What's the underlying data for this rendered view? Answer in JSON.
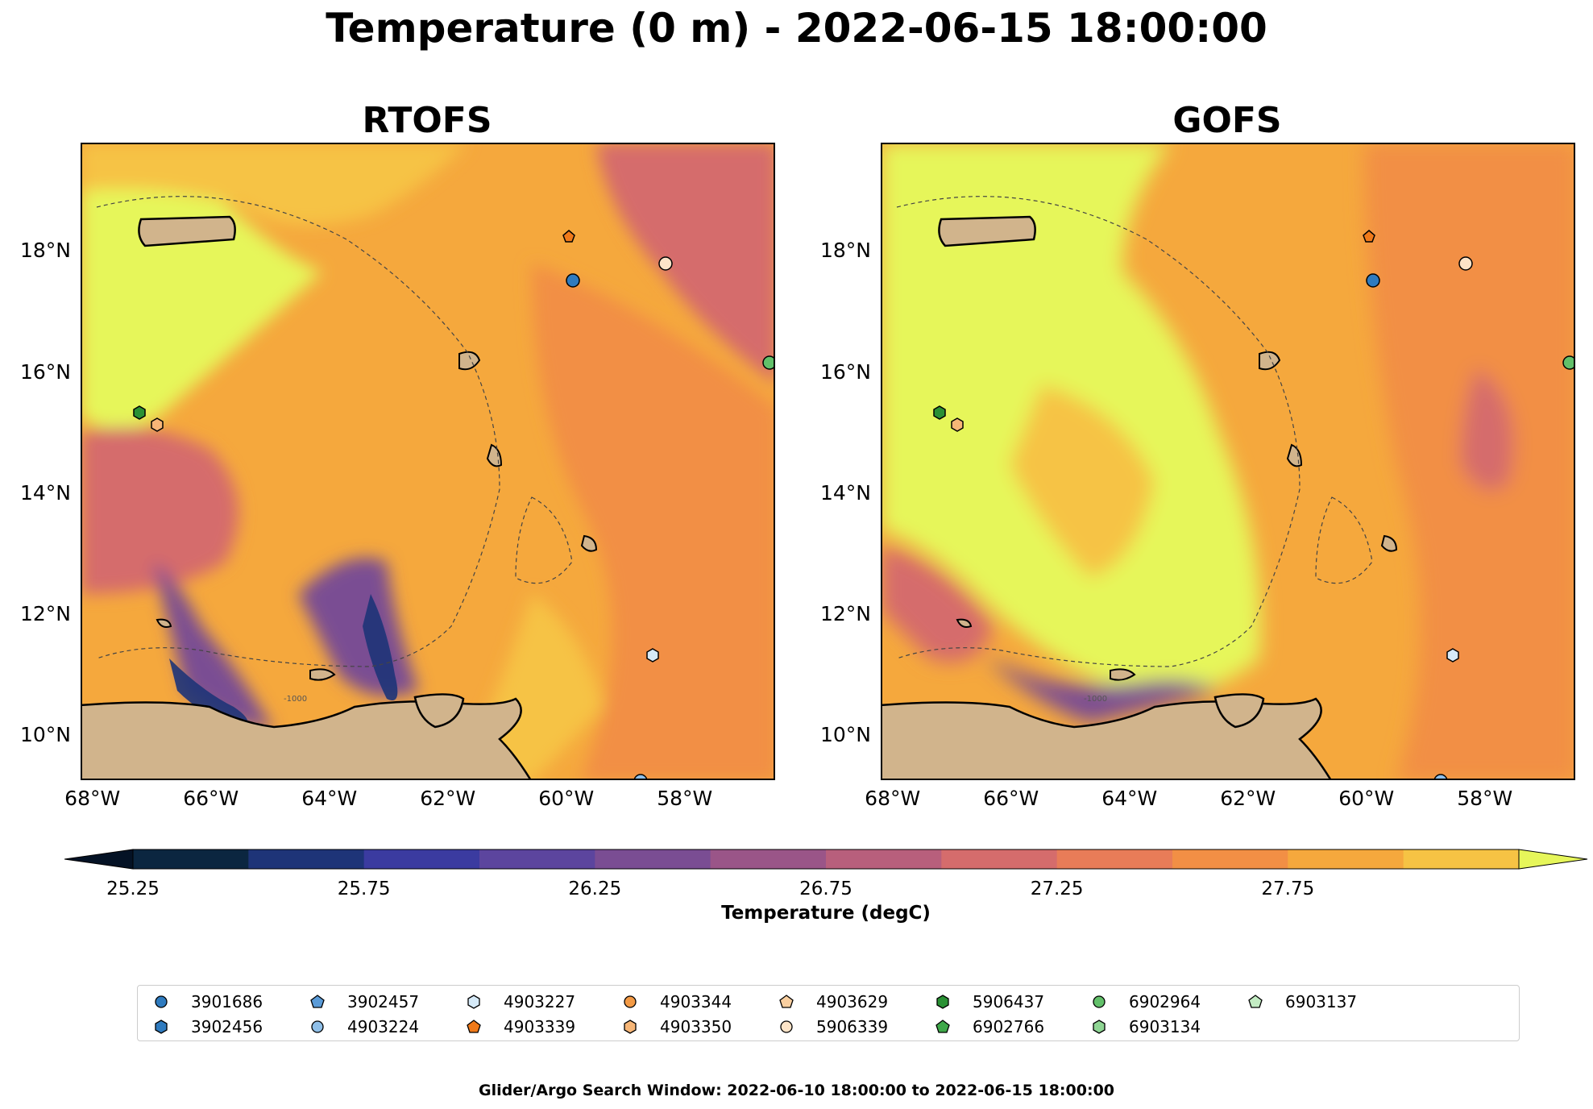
{
  "title": "Temperature (0 m) - 2022-06-15 18:00:00",
  "panels": [
    {
      "id": "rtofs",
      "title": "RTOFS"
    },
    {
      "id": "gofs",
      "title": "GOFS"
    }
  ],
  "axes": {
    "lat_ticks": [
      "18°N",
      "16°N",
      "14°N",
      "12°N",
      "10°N"
    ],
    "lon_ticks": [
      "68°W",
      "66°W",
      "64°W",
      "62°W",
      "60°W",
      "58°W"
    ],
    "lat_range": [
      9.3,
      19.8
    ],
    "lon_range": [
      -68.2,
      -56.5
    ],
    "contour_label": "-1000"
  },
  "colorbar": {
    "label": "Temperature (degC)",
    "ticks": [
      "25.25",
      "25.75",
      "26.25",
      "26.75",
      "27.25",
      "27.75"
    ],
    "colors": [
      "#0b2640",
      "#1e3478",
      "#3b3ba0",
      "#5c459e",
      "#7a4d93",
      "#9a5588",
      "#b85f7c",
      "#d56c6c",
      "#e87c58",
      "#f28f45",
      "#f5a83d",
      "#f6c344"
    ],
    "over_color": "#e6f65a",
    "under_color": "#041225"
  },
  "colors": {
    "land": "#d1b48c",
    "lake": "#8fb4e0",
    "warmest": "#e6f65a",
    "warm": "#f6c344",
    "mid": "#f5a83d",
    "orange": "#f28f45",
    "red": "#d56c6c",
    "cool": "#7a4d93",
    "cold": "#1e3478"
  },
  "legend": [
    {
      "id": "3901686",
      "marker": "circle",
      "color": "#2f7bbf"
    },
    {
      "id": "3902456",
      "marker": "hexagon",
      "color": "#2f7bbf"
    },
    {
      "id": "3902457",
      "marker": "pentagon",
      "color": "#5a9bd8"
    },
    {
      "id": "4903224",
      "marker": "circle",
      "color": "#8fbfe8"
    },
    {
      "id": "4903227",
      "marker": "hexagon",
      "color": "#d6eaf8"
    },
    {
      "id": "4903339",
      "marker": "pentagon",
      "color": "#f07a1a"
    },
    {
      "id": "4903344",
      "marker": "circle",
      "color": "#f39a45"
    },
    {
      "id": "4903350",
      "marker": "hexagon",
      "color": "#f7b677"
    },
    {
      "id": "4903629",
      "marker": "pentagon",
      "color": "#f9cfa0"
    },
    {
      "id": "5906339",
      "marker": "circle",
      "color": "#fde4c8"
    },
    {
      "id": "5906437",
      "marker": "hexagon",
      "color": "#2a9134"
    },
    {
      "id": "6902766",
      "marker": "pentagon",
      "color": "#3fa84a"
    },
    {
      "id": "6902964",
      "marker": "circle",
      "color": "#62c06a"
    },
    {
      "id": "6903134",
      "marker": "hexagon",
      "color": "#8fd694"
    },
    {
      "id": "6903137",
      "marker": "pentagon",
      "color": "#c3ecc3"
    }
  ],
  "footer": "Glider/Argo Search Window: 2022-06-10 18:00:00 to 2022-06-15 18:00:00"
}
